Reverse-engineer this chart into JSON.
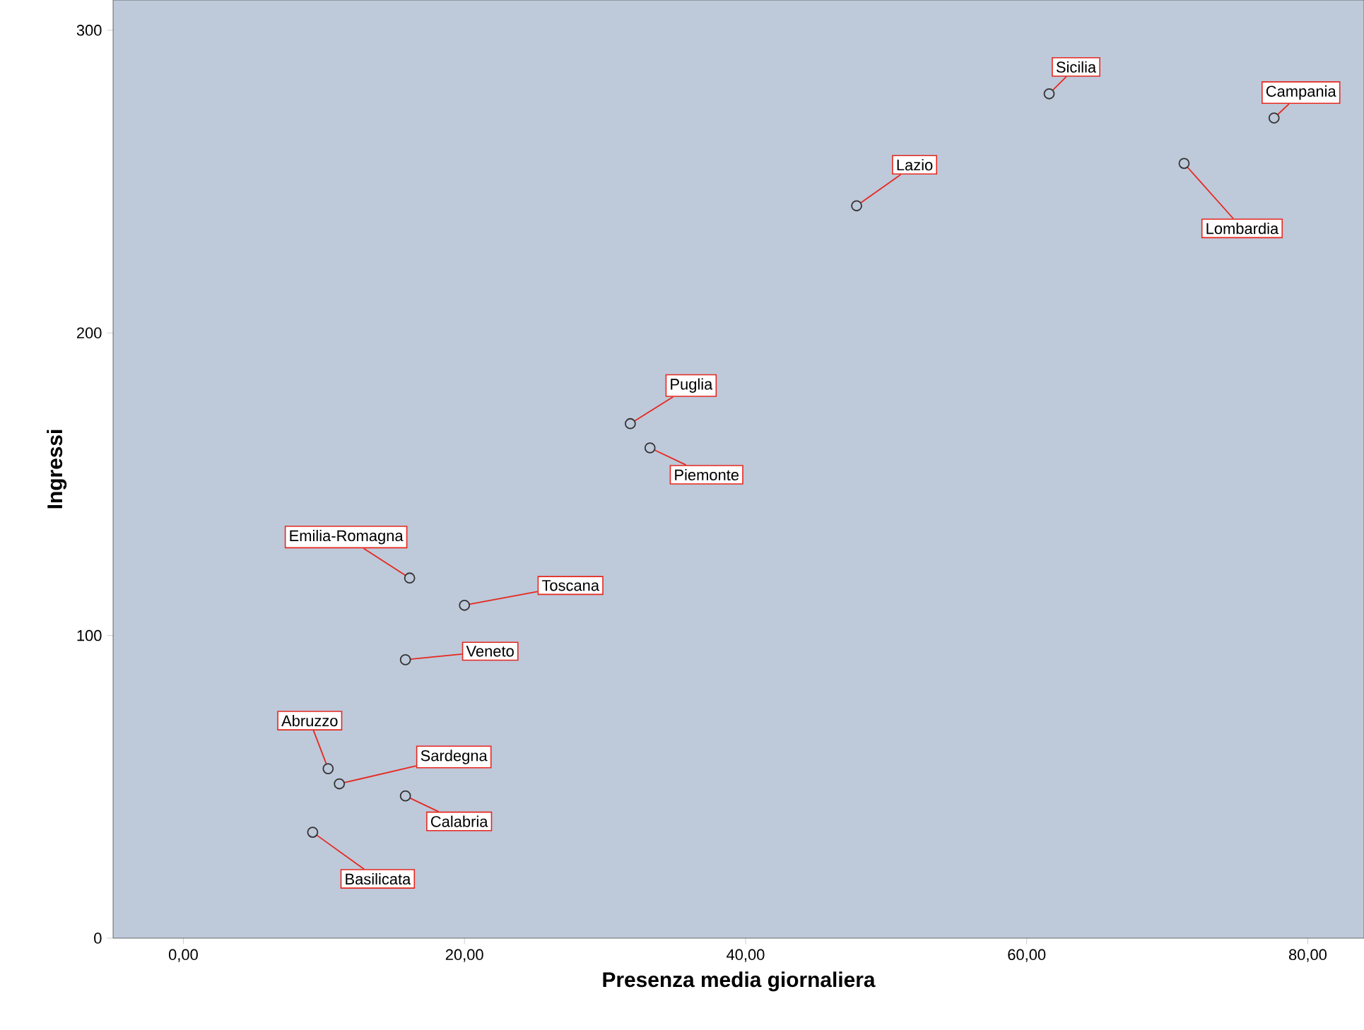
{
  "chart_data": {
    "type": "scatter",
    "xlabel": "Presenza media giornaliera",
    "ylabel": "Ingressi",
    "color": "#333333",
    "marker": "circle",
    "x": [
      61.6,
      77.6,
      71.2,
      47.9,
      31.8,
      33.2,
      16.1,
      20.0,
      15.8,
      10.3,
      11.1,
      15.8,
      9.2
    ],
    "values": [
      279,
      271,
      256,
      242,
      170,
      162,
      119,
      110,
      92,
      56,
      51,
      47,
      35
    ],
    "xlim": [
      -5,
      84
    ],
    "ylim": [
      0,
      310
    ],
    "xticks": [
      {
        "value": 0,
        "label": "0,00"
      },
      {
        "value": 20,
        "label": "20,00"
      },
      {
        "value": 40,
        "label": "40,00"
      },
      {
        "value": 60,
        "label": "60,00"
      },
      {
        "value": 80,
        "label": "80,00"
      }
    ],
    "yticks": [
      0,
      100,
      200,
      300
    ],
    "annotations": [
      {
        "text": "Sicilia",
        "x": 61.6,
        "y": 279
      },
      {
        "text": "Campania",
        "x": 77.6,
        "y": 271
      },
      {
        "text": "Lombardia",
        "x": 71.2,
        "y": 256
      },
      {
        "text": "Lazio",
        "x": 47.9,
        "y": 242
      },
      {
        "text": "Puglia",
        "x": 31.8,
        "y": 170
      },
      {
        "text": "Piemonte",
        "x": 33.2,
        "y": 162
      },
      {
        "text": "Emilia-Romagna",
        "x": 16.1,
        "y": 119
      },
      {
        "text": "Toscana",
        "x": 20.0,
        "y": 110
      },
      {
        "text": "Veneto",
        "x": 15.8,
        "y": 92
      },
      {
        "text": "Abruzzo",
        "x": 10.3,
        "y": 56
      },
      {
        "text": "Sardegna",
        "x": 11.1,
        "y": 51
      },
      {
        "text": "Calabria",
        "x": 15.8,
        "y": 47
      },
      {
        "text": "Basilicata",
        "x": 9.2,
        "y": 35
      }
    ]
  }
}
